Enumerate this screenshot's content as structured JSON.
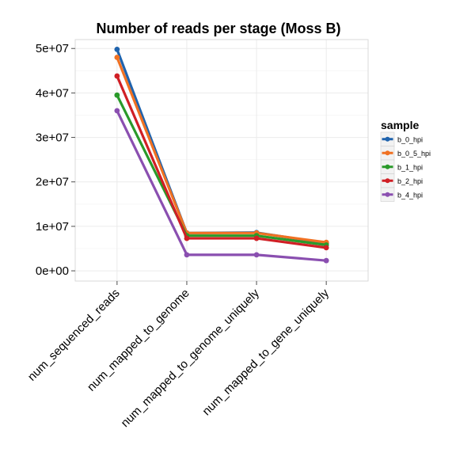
{
  "chart_data": {
    "type": "line",
    "title": "Number of reads per stage (Moss B)",
    "xlabel": "",
    "ylabel": "",
    "categories": [
      "num_sequenced_reads",
      "num_mapped_to_genome",
      "num_mapped_to_genome_uniquely",
      "num_mapped_to_gene_uniquely"
    ],
    "y_ticks": [
      "0e+00",
      "1e+07",
      "2e+07",
      "3e+07",
      "4e+07",
      "5e+07"
    ],
    "y_tick_values": [
      0,
      10000000,
      20000000,
      30000000,
      40000000,
      50000000
    ],
    "ylim": [
      -2300000,
      52000000
    ],
    "grid": true,
    "legend_title": "sample",
    "legend_position": "right",
    "series": [
      {
        "name": "b_0_hpi",
        "color": "#1f63ad",
        "values": [
          49800000,
          8500000,
          8600000,
          6200000
        ]
      },
      {
        "name": "b_0_5_hpi",
        "color": "#f07122",
        "values": [
          48000000,
          8500000,
          8500000,
          6400000
        ]
      },
      {
        "name": "b_1_hpi",
        "color": "#2a9a2a",
        "values": [
          39500000,
          7900000,
          7900000,
          5800000
        ]
      },
      {
        "name": "b_2_hpi",
        "color": "#d01f25",
        "values": [
          43800000,
          7300000,
          7300000,
          5200000
        ]
      },
      {
        "name": "b_4_hpi",
        "color": "#8a4fb0",
        "values": [
          36000000,
          3600000,
          3600000,
          2300000
        ]
      }
    ]
  }
}
